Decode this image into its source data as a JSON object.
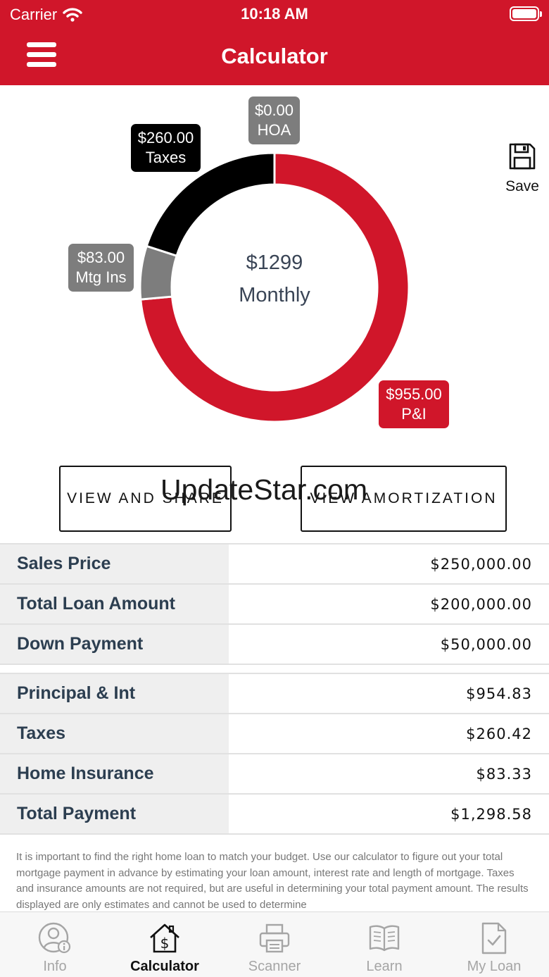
{
  "status": {
    "carrier": "Carrier",
    "time": "10:18 AM"
  },
  "nav": {
    "title": "Calculator"
  },
  "chart_data": {
    "type": "pie",
    "center_amount": "$1299",
    "center_label": "Monthly",
    "slices": [
      {
        "name": "P&I",
        "amount": "$955.00",
        "value": 955,
        "color": "#d0162a"
      },
      {
        "name": "Mtg Ins",
        "amount": "$83.00",
        "value": 83,
        "color": "#7d7d7d"
      },
      {
        "name": "Taxes",
        "amount": "$260.00",
        "value": 260,
        "color": "#000000"
      },
      {
        "name": "HOA",
        "amount": "$0.00",
        "value": 0,
        "color": "#7d7d7d"
      }
    ]
  },
  "save": {
    "label": "Save"
  },
  "buttons": {
    "share": "VIEW AND SHARE",
    "amortization": "VIEW AMORTIZATION"
  },
  "watermark": "UpdateStar.com",
  "loan": [
    {
      "label": "Sales Price",
      "value": "$250,000.00"
    },
    {
      "label": "Total Loan Amount",
      "value": "$200,000.00"
    },
    {
      "label": "Down Payment",
      "value": "$50,000.00"
    }
  ],
  "payment": [
    {
      "label": "Principal & Int",
      "value": "$954.83"
    },
    {
      "label": "Taxes",
      "value": "$260.42"
    },
    {
      "label": "Home Insurance",
      "value": "$83.33"
    },
    {
      "label": "Total Payment",
      "value": "$1,298.58"
    }
  ],
  "disclaimer": "It is important to find the right home loan to match your budget. Use our calculator to figure out your total mortgage payment in advance by estimating your loan amount, interest rate and length of mortgage. Taxes and insurance amounts are not required, but are useful in determining your total payment amount. The results displayed are only estimates and cannot be used to determine",
  "tabs": [
    {
      "label": "Info",
      "icon": "user-info-icon"
    },
    {
      "label": "Calculator",
      "icon": "house-dollar-icon",
      "active": true
    },
    {
      "label": "Scanner",
      "icon": "printer-icon"
    },
    {
      "label": "Learn",
      "icon": "open-book-icon"
    },
    {
      "label": "My Loan",
      "icon": "document-check-icon"
    }
  ]
}
